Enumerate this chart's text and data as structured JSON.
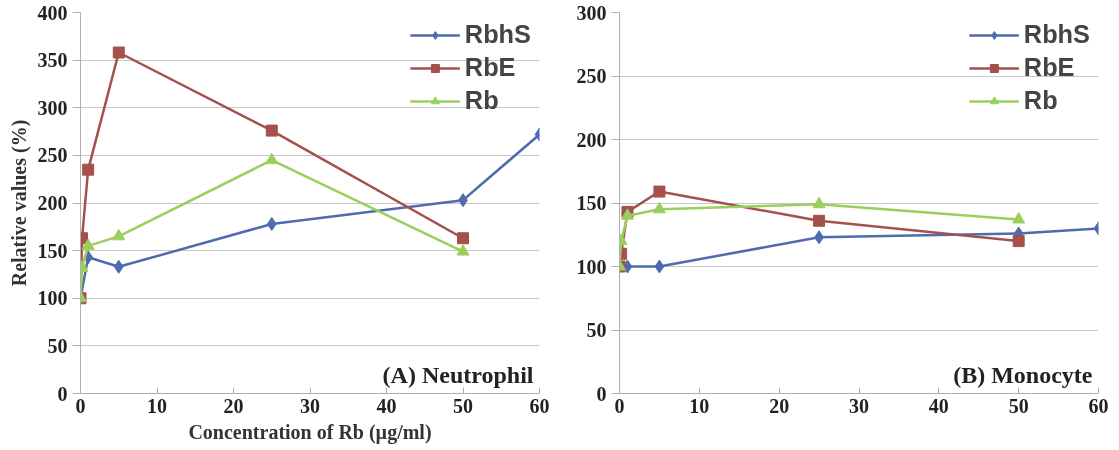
{
  "chart_data": [
    {
      "type": "line",
      "ylabel": "Relative values (%)",
      "xlabel": "Concentration of Rb (µg/ml)",
      "annotations": [
        "(A) Neutrophil"
      ],
      "xlim": [
        0,
        60
      ],
      "xticks": [
        0,
        10,
        20,
        30,
        40,
        50,
        60
      ],
      "ylim": [
        0,
        400
      ],
      "yticks": [
        0,
        50,
        100,
        150,
        200,
        250,
        300,
        350,
        400
      ],
      "grid": "y",
      "legend": "top right",
      "series": [
        {
          "name": "RbhS",
          "color": "#4f6bb0",
          "marker": "diamond",
          "x": [
            0,
            1,
            5,
            25,
            50,
            60
          ],
          "values": [
            100,
            143,
            133,
            178,
            203,
            272
          ]
        },
        {
          "name": "RbE",
          "color": "#a5504c",
          "marker": "square",
          "x": [
            0,
            0.2,
            1,
            5,
            25,
            50
          ],
          "values": [
            100,
            163,
            235,
            358,
            276,
            163
          ]
        },
        {
          "name": "Rb",
          "color": "#9bcf5c",
          "marker": "triangle",
          "x": [
            0,
            0.2,
            1,
            5,
            25,
            50
          ],
          "values": [
            100,
            132,
            155,
            165,
            245,
            149
          ]
        }
      ]
    },
    {
      "type": "line",
      "annotations": [
        "(B) Monocyte"
      ],
      "xlim": [
        0,
        60
      ],
      "xticks": [
        0,
        10,
        20,
        30,
        40,
        50,
        60
      ],
      "ylim": [
        0,
        300
      ],
      "yticks": [
        0,
        50,
        100,
        150,
        200,
        250,
        300
      ],
      "grid": "y",
      "legend": "top right",
      "series": [
        {
          "name": "RbhS",
          "color": "#4f6bb0",
          "marker": "diamond",
          "x": [
            0,
            1,
            5,
            25,
            50,
            60
          ],
          "values": [
            100,
            100,
            100,
            123,
            126,
            130
          ]
        },
        {
          "name": "RbE",
          "color": "#a5504c",
          "marker": "square",
          "x": [
            0,
            0.2,
            1,
            5,
            25,
            50
          ],
          "values": [
            100,
            110,
            143,
            159,
            136,
            120
          ]
        },
        {
          "name": "Rb",
          "color": "#9bcf5c",
          "marker": "triangle",
          "x": [
            0,
            0.2,
            1,
            5,
            25,
            50
          ],
          "values": [
            100,
            120,
            140,
            145,
            149,
            137
          ]
        }
      ]
    }
  ]
}
